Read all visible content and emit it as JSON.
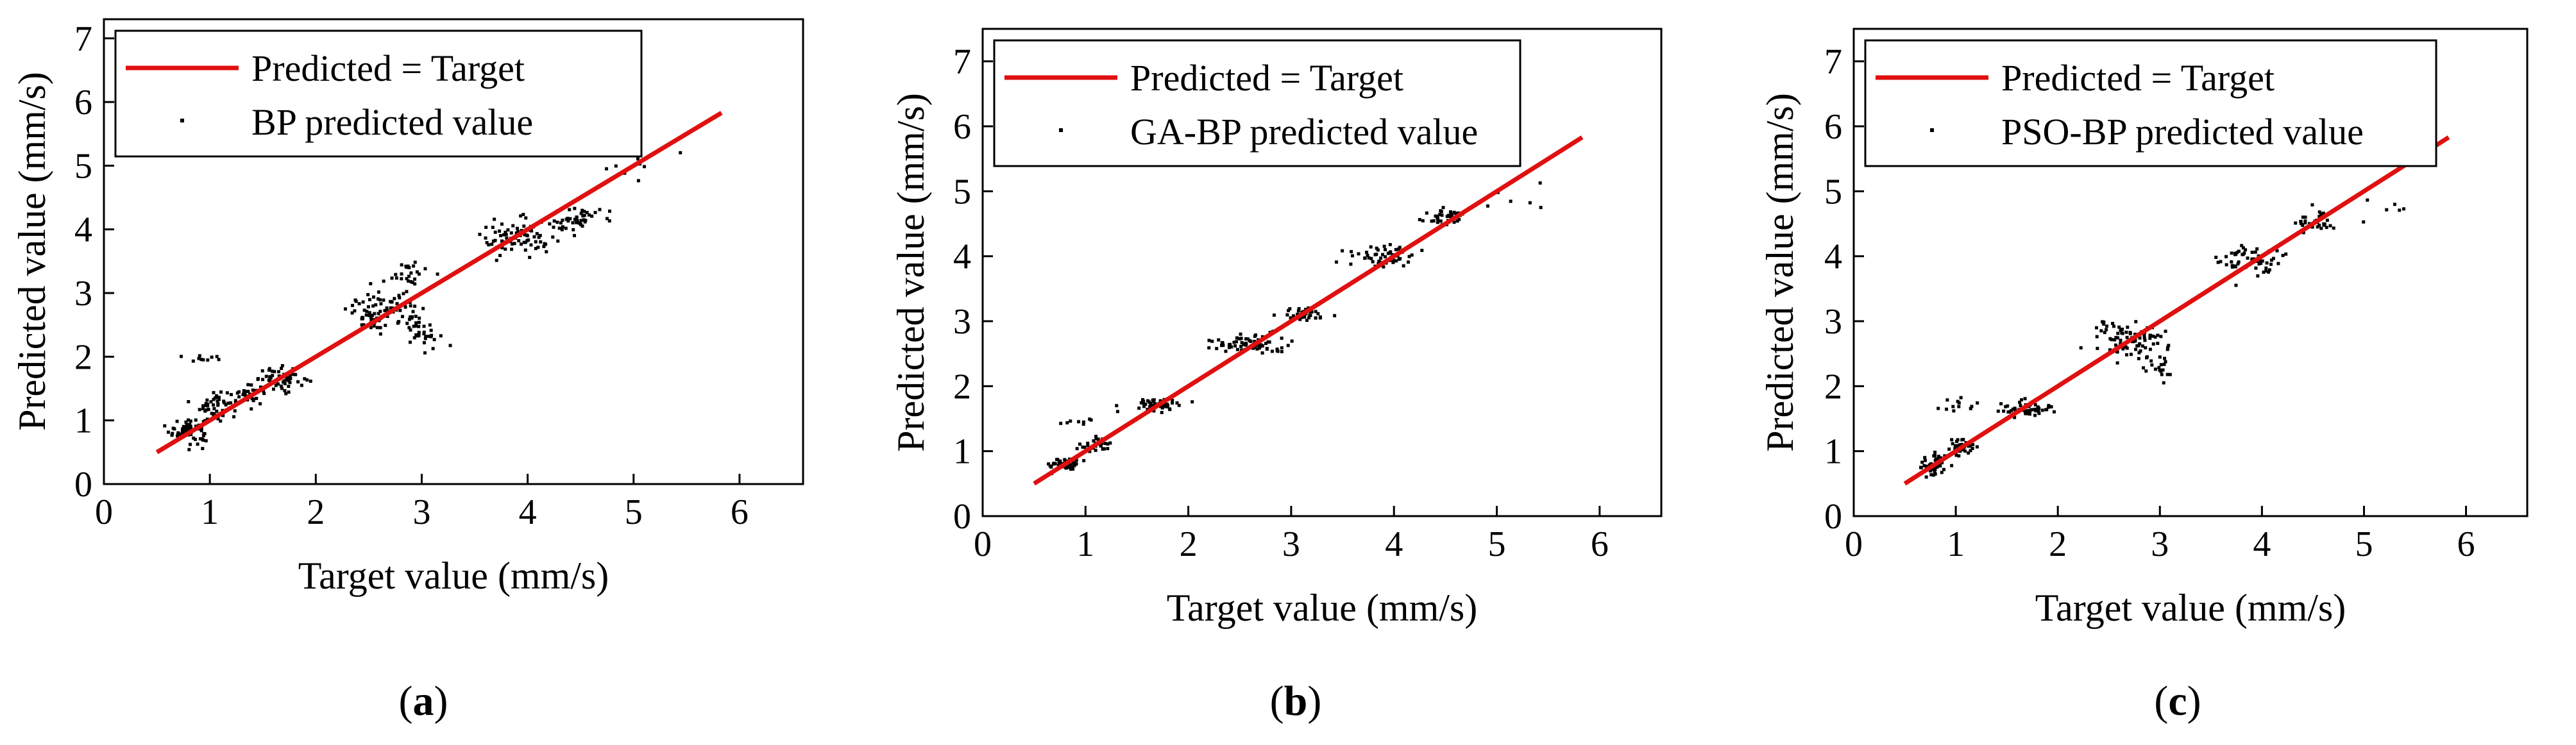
{
  "chart_data": [
    {
      "type": "scatter",
      "panel_label": "a",
      "xlabel": "Target value (mm/s)",
      "ylabel": "Predicted value (mm/s)",
      "xlim": [
        0,
        6.6
      ],
      "ylim": [
        0,
        7.3
      ],
      "xticks": [
        "0",
        "1",
        "2",
        "3",
        "4",
        "5",
        "6"
      ],
      "yticks": [
        "0",
        "1",
        "2",
        "3",
        "4",
        "5",
        "6",
        "7"
      ],
      "grid": false,
      "legend_position": "top-left",
      "series": [
        {
          "name": "Predicted = Target",
          "kind": "line",
          "color": "#e01010",
          "x": [
            0.5,
            5.83
          ],
          "y": [
            0.5,
            5.83
          ]
        },
        {
          "name": "BP predicted value",
          "kind": "points",
          "color": "#000000",
          "clusters": [
            {
              "x_center": 0.8,
              "x_spread": 0.15,
              "y_center": 0.85,
              "y_spread": 0.18,
              "count": 70
            },
            {
              "x_center": 1.05,
              "x_spread": 0.12,
              "y_center": 1.25,
              "y_spread": 0.2,
              "count": 45
            },
            {
              "x_center": 1.35,
              "x_spread": 0.15,
              "y_center": 1.4,
              "y_spread": 0.12,
              "count": 35
            },
            {
              "x_center": 1.7,
              "x_spread": 0.2,
              "y_center": 1.65,
              "y_spread": 0.15,
              "count": 50
            },
            {
              "x_center": 0.95,
              "x_spread": 0.2,
              "y_center": 1.95,
              "y_spread": 0.06,
              "count": 10
            },
            {
              "x_center": 2.6,
              "x_spread": 0.25,
              "y_center": 2.7,
              "y_spread": 0.25,
              "count": 80
            },
            {
              "x_center": 3.0,
              "x_spread": 0.15,
              "y_center": 2.5,
              "y_spread": 0.3,
              "count": 40
            },
            {
              "x_center": 2.9,
              "x_spread": 0.15,
              "y_center": 3.3,
              "y_spread": 0.15,
              "count": 25
            },
            {
              "x_center": 3.9,
              "x_spread": 0.3,
              "y_center": 3.85,
              "y_spread": 0.25,
              "count": 80
            },
            {
              "x_center": 4.45,
              "x_spread": 0.2,
              "y_center": 4.15,
              "y_spread": 0.2,
              "count": 45
            },
            {
              "x_center": 5.1,
              "x_spread": 0.45,
              "y_center": 5.0,
              "y_spread": 0.2,
              "count": 8
            }
          ]
        }
      ]
    },
    {
      "type": "scatter",
      "panel_label": "b",
      "xlabel": "Target value (mm/s)",
      "ylabel": "Predicted value (mm/s)",
      "xlim": [
        0,
        6.6
      ],
      "ylim": [
        0,
        7.5
      ],
      "xticks": [
        "0",
        "1",
        "2",
        "3",
        "4",
        "5",
        "6"
      ],
      "yticks": [
        "0",
        "1",
        "2",
        "3",
        "4",
        "5",
        "6",
        "7"
      ],
      "grid": false,
      "legend_position": "top-left",
      "series": [
        {
          "name": "Predicted = Target",
          "kind": "line",
          "color": "#e01010",
          "x": [
            0.5,
            5.83
          ],
          "y": [
            0.5,
            5.83
          ]
        },
        {
          "name": "GA-BP predicted value",
          "kind": "points",
          "color": "#000000",
          "clusters": [
            {
              "x_center": 0.8,
              "x_spread": 0.12,
              "y_center": 0.8,
              "y_spread": 0.08,
              "count": 50
            },
            {
              "x_center": 1.1,
              "x_spread": 0.12,
              "y_center": 1.1,
              "y_spread": 0.1,
              "count": 40
            },
            {
              "x_center": 1.7,
              "x_spread": 0.2,
              "y_center": 1.72,
              "y_spread": 0.08,
              "count": 50
            },
            {
              "x_center": 0.9,
              "x_spread": 0.15,
              "y_center": 1.45,
              "y_spread": 0.05,
              "count": 8
            },
            {
              "x_center": 2.6,
              "x_spread": 0.3,
              "y_center": 2.65,
              "y_spread": 0.12,
              "count": 80
            },
            {
              "x_center": 3.1,
              "x_spread": 0.2,
              "y_center": 3.1,
              "y_spread": 0.1,
              "count": 40
            },
            {
              "x_center": 3.9,
              "x_spread": 0.25,
              "y_center": 4.0,
              "y_spread": 0.15,
              "count": 60
            },
            {
              "x_center": 4.5,
              "x_spread": 0.2,
              "y_center": 4.6,
              "y_spread": 0.1,
              "count": 40
            },
            {
              "x_center": 5.2,
              "x_spread": 0.4,
              "y_center": 4.9,
              "y_spread": 0.15,
              "count": 6
            }
          ]
        }
      ]
    },
    {
      "type": "scatter",
      "panel_label": "c",
      "xlabel": "Target value (mm/s)",
      "ylabel": "Predicted value (mm/s)",
      "xlim": [
        0,
        6.6
      ],
      "ylim": [
        0,
        7.5
      ],
      "xticks": [
        "0",
        "1",
        "2",
        "3",
        "4",
        "5",
        "6"
      ],
      "yticks": [
        "0",
        "1",
        "2",
        "3",
        "4",
        "5",
        "6",
        "7"
      ],
      "grid": false,
      "legend_position": "top-left",
      "series": [
        {
          "name": "Predicted = Target",
          "kind": "line",
          "color": "#e01010",
          "x": [
            0.5,
            5.83
          ],
          "y": [
            0.5,
            5.83
          ]
        },
        {
          "name": "PSO-BP predicted value",
          "kind": "points",
          "color": "#000000",
          "clusters": [
            {
              "x_center": 0.8,
              "x_spread": 0.12,
              "y_center": 0.8,
              "y_spread": 0.15,
              "count": 55
            },
            {
              "x_center": 1.05,
              "x_spread": 0.12,
              "y_center": 1.05,
              "y_spread": 0.12,
              "count": 40
            },
            {
              "x_center": 1.05,
              "x_spread": 0.2,
              "y_center": 1.7,
              "y_spread": 0.12,
              "count": 12
            },
            {
              "x_center": 1.7,
              "x_spread": 0.2,
              "y_center": 1.65,
              "y_spread": 0.1,
              "count": 50
            },
            {
              "x_center": 2.7,
              "x_spread": 0.3,
              "y_center": 2.7,
              "y_spread": 0.25,
              "count": 90
            },
            {
              "x_center": 3.0,
              "x_spread": 0.15,
              "y_center": 2.3,
              "y_spread": 0.25,
              "count": 20
            },
            {
              "x_center": 3.9,
              "x_spread": 0.25,
              "y_center": 3.95,
              "y_spread": 0.2,
              "count": 60
            },
            {
              "x_center": 4.5,
              "x_spread": 0.2,
              "y_center": 4.5,
              "y_spread": 0.15,
              "count": 40
            },
            {
              "x_center": 5.2,
              "x_spread": 0.4,
              "y_center": 4.75,
              "y_spread": 0.15,
              "count": 6
            }
          ]
        }
      ]
    }
  ]
}
